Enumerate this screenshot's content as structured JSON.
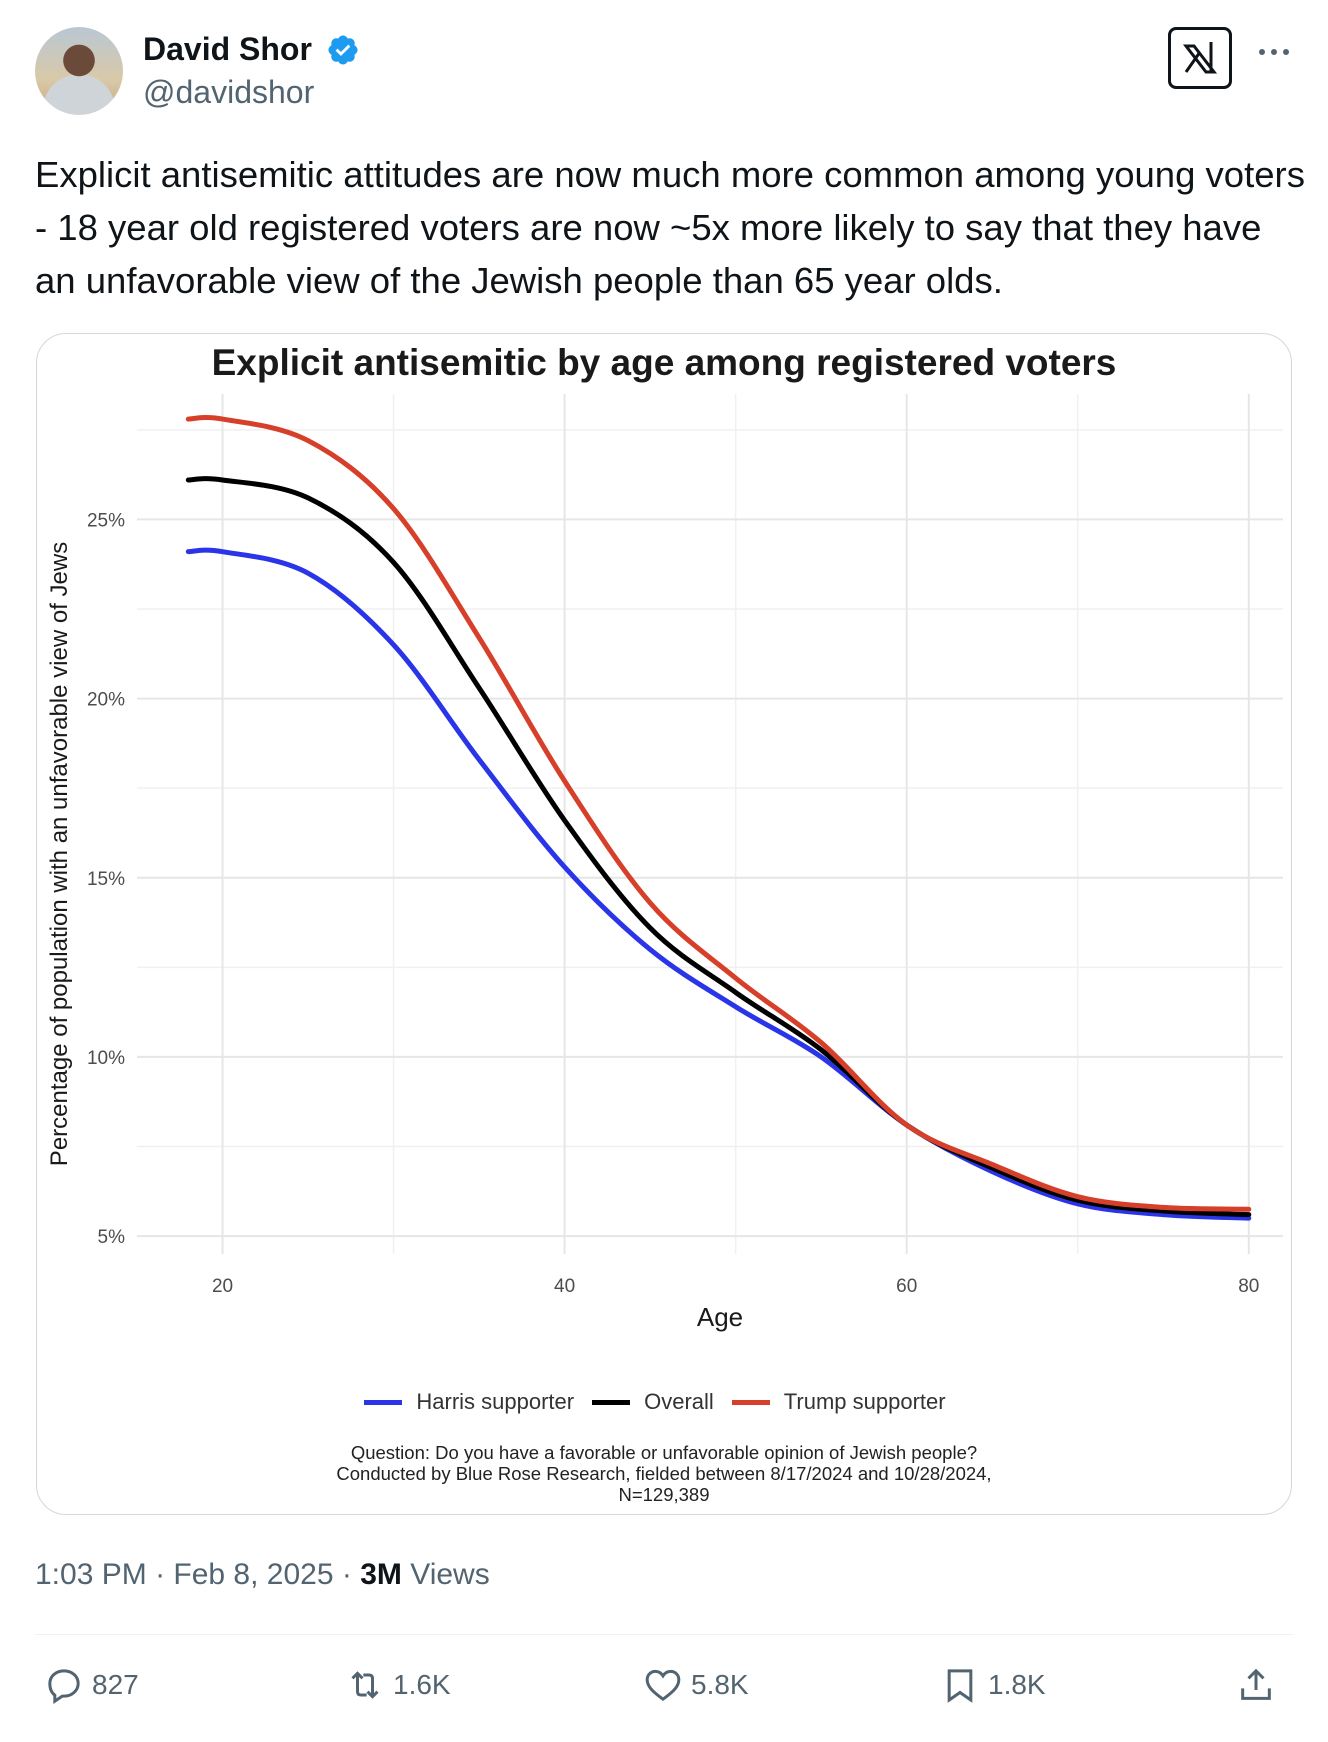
{
  "author": {
    "name": "David Shor",
    "handle": "@davidshor"
  },
  "tweet": {
    "text": "Explicit antisemitic attitudes are now much more common among young voters - 18 year old registered voters are now ~5x more likely to say that they have an unfavorable view of the Jewish people than 65 year olds."
  },
  "chart_data": {
    "type": "line",
    "title": "Explicit antisemitic by age among registered voters",
    "xlabel": "Age",
    "ylabel": "Percentage of population with an unfavorable view of Jews",
    "xlim": [
      15,
      82
    ],
    "ylim": [
      4.5,
      28.5
    ],
    "x_ticks": [
      20,
      40,
      60,
      80
    ],
    "x_tick_labels": [
      "20",
      "40",
      "60",
      "80"
    ],
    "y_ticks": [
      5,
      10,
      15,
      20,
      25
    ],
    "y_tick_labels": [
      "5%",
      "10%",
      "15%",
      "20%",
      "25%"
    ],
    "grid": true,
    "legend_position": "bottom",
    "series": [
      {
        "name": "Harris supporter",
        "color": "#2b35e8",
        "x": [
          18,
          20,
          25,
          30,
          35,
          40,
          45,
          50,
          55,
          60,
          65,
          70,
          75,
          80
        ],
        "y": [
          24.1,
          24.1,
          23.5,
          21.5,
          18.3,
          15.3,
          13.0,
          11.4,
          10.0,
          8.1,
          6.8,
          5.9,
          5.6,
          5.5
        ]
      },
      {
        "name": "Overall",
        "color": "#000000",
        "x": [
          18,
          20,
          25,
          30,
          35,
          40,
          45,
          50,
          55,
          60,
          65,
          70,
          75,
          80
        ],
        "y": [
          26.1,
          26.1,
          25.6,
          23.8,
          20.3,
          16.6,
          13.6,
          11.8,
          10.2,
          8.1,
          6.9,
          6.0,
          5.7,
          5.6
        ]
      },
      {
        "name": "Trump supporter",
        "color": "#d6402a",
        "x": [
          18,
          20,
          25,
          30,
          35,
          40,
          45,
          50,
          55,
          60,
          65,
          70,
          75,
          80
        ],
        "y": [
          27.8,
          27.8,
          27.2,
          25.3,
          21.7,
          17.7,
          14.3,
          12.2,
          10.4,
          8.1,
          7.0,
          6.1,
          5.8,
          5.75
        ]
      }
    ],
    "note_lines": [
      "Question: Do you have a favorable or unfavorable opinion of Jewish people?",
      "Conducted by Blue Rose Research, fielded between 8/17/2024 and 10/28/2024,",
      "N=129,389"
    ]
  },
  "meta": {
    "time": "1:03 PM",
    "date": "Feb 8, 2025",
    "views_count": "3M",
    "views_label": "Views"
  },
  "actions": {
    "replies": "827",
    "reposts": "1.6K",
    "likes": "5.8K",
    "bookmarks": "1.8K"
  }
}
